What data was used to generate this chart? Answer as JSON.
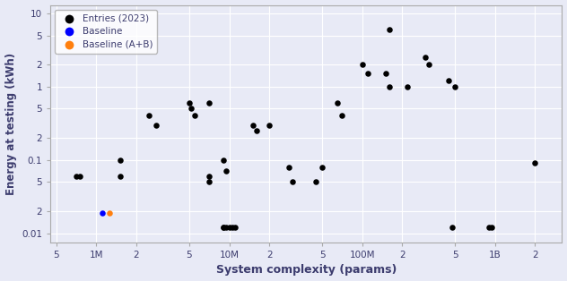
{
  "xlabel": "System complexity (params)",
  "ylabel": "Energy at testing (kWh)",
  "background_color": "#e8eaf6",
  "entries_color": "black",
  "baseline_color": "#0000ff",
  "baseline_ab_color": "#ff7f0e",
  "marker_size": 22,
  "entries_x": [
    700000,
    750000,
    1500000,
    1500000,
    2500000,
    2800000,
    5000000,
    5200000,
    5500000,
    7000000,
    7000000,
    7000000,
    9000000,
    9500000,
    9000000,
    9000000,
    9500000,
    10000000,
    10500000,
    11000000,
    15000000,
    16000000,
    20000000,
    28000000,
    30000000,
    45000000,
    50000000,
    65000000,
    70000000,
    100000000,
    110000000,
    160000000,
    150000000,
    160000000,
    220000000,
    300000000,
    320000000,
    450000000,
    500000000,
    480000000,
    900000000,
    950000000,
    2000000000
  ],
  "entries_y": [
    0.06,
    0.06,
    0.1,
    0.06,
    0.4,
    0.3,
    0.6,
    0.5,
    0.4,
    0.6,
    0.06,
    0.05,
    0.1,
    0.07,
    0.012,
    0.012,
    0.012,
    0.012,
    0.012,
    0.012,
    0.3,
    0.25,
    0.3,
    0.08,
    0.05,
    0.05,
    0.08,
    0.6,
    0.4,
    2.0,
    1.5,
    6.0,
    1.5,
    1.0,
    1.0,
    2.5,
    2.0,
    1.2,
    1.0,
    0.012,
    0.012,
    0.012,
    0.09
  ],
  "baseline_x": [
    1100000
  ],
  "baseline_y": [
    0.019
  ],
  "baseline_ab_x": [
    1250000
  ],
  "baseline_ab_y": [
    0.019
  ],
  "xlim": [
    450000.0,
    3200000000.0
  ],
  "ylim": [
    0.0075,
    13
  ],
  "xtick_positions": [
    500000,
    1000000,
    2000000,
    5000000,
    10000000,
    20000000,
    50000000,
    100000000,
    200000000,
    500000000,
    1000000000,
    2000000000
  ],
  "xtick_labels": [
    "5",
    "1M",
    "2",
    "5",
    "10M",
    "2",
    "5",
    "100M",
    "2",
    "5",
    "1B",
    "2"
  ],
  "ytick_major_positions": [
    0.01,
    0.1,
    1.0,
    10.0
  ],
  "ytick_major_labels": [
    "0.01",
    "0.1",
    "1",
    "10"
  ],
  "ytick_minor_labeled_positions": [
    0.02,
    0.05,
    0.2,
    0.5,
    2.0,
    5.0
  ],
  "ytick_minor_labeled_labels": [
    "2",
    "5",
    "2",
    "5",
    "2",
    "5"
  ]
}
